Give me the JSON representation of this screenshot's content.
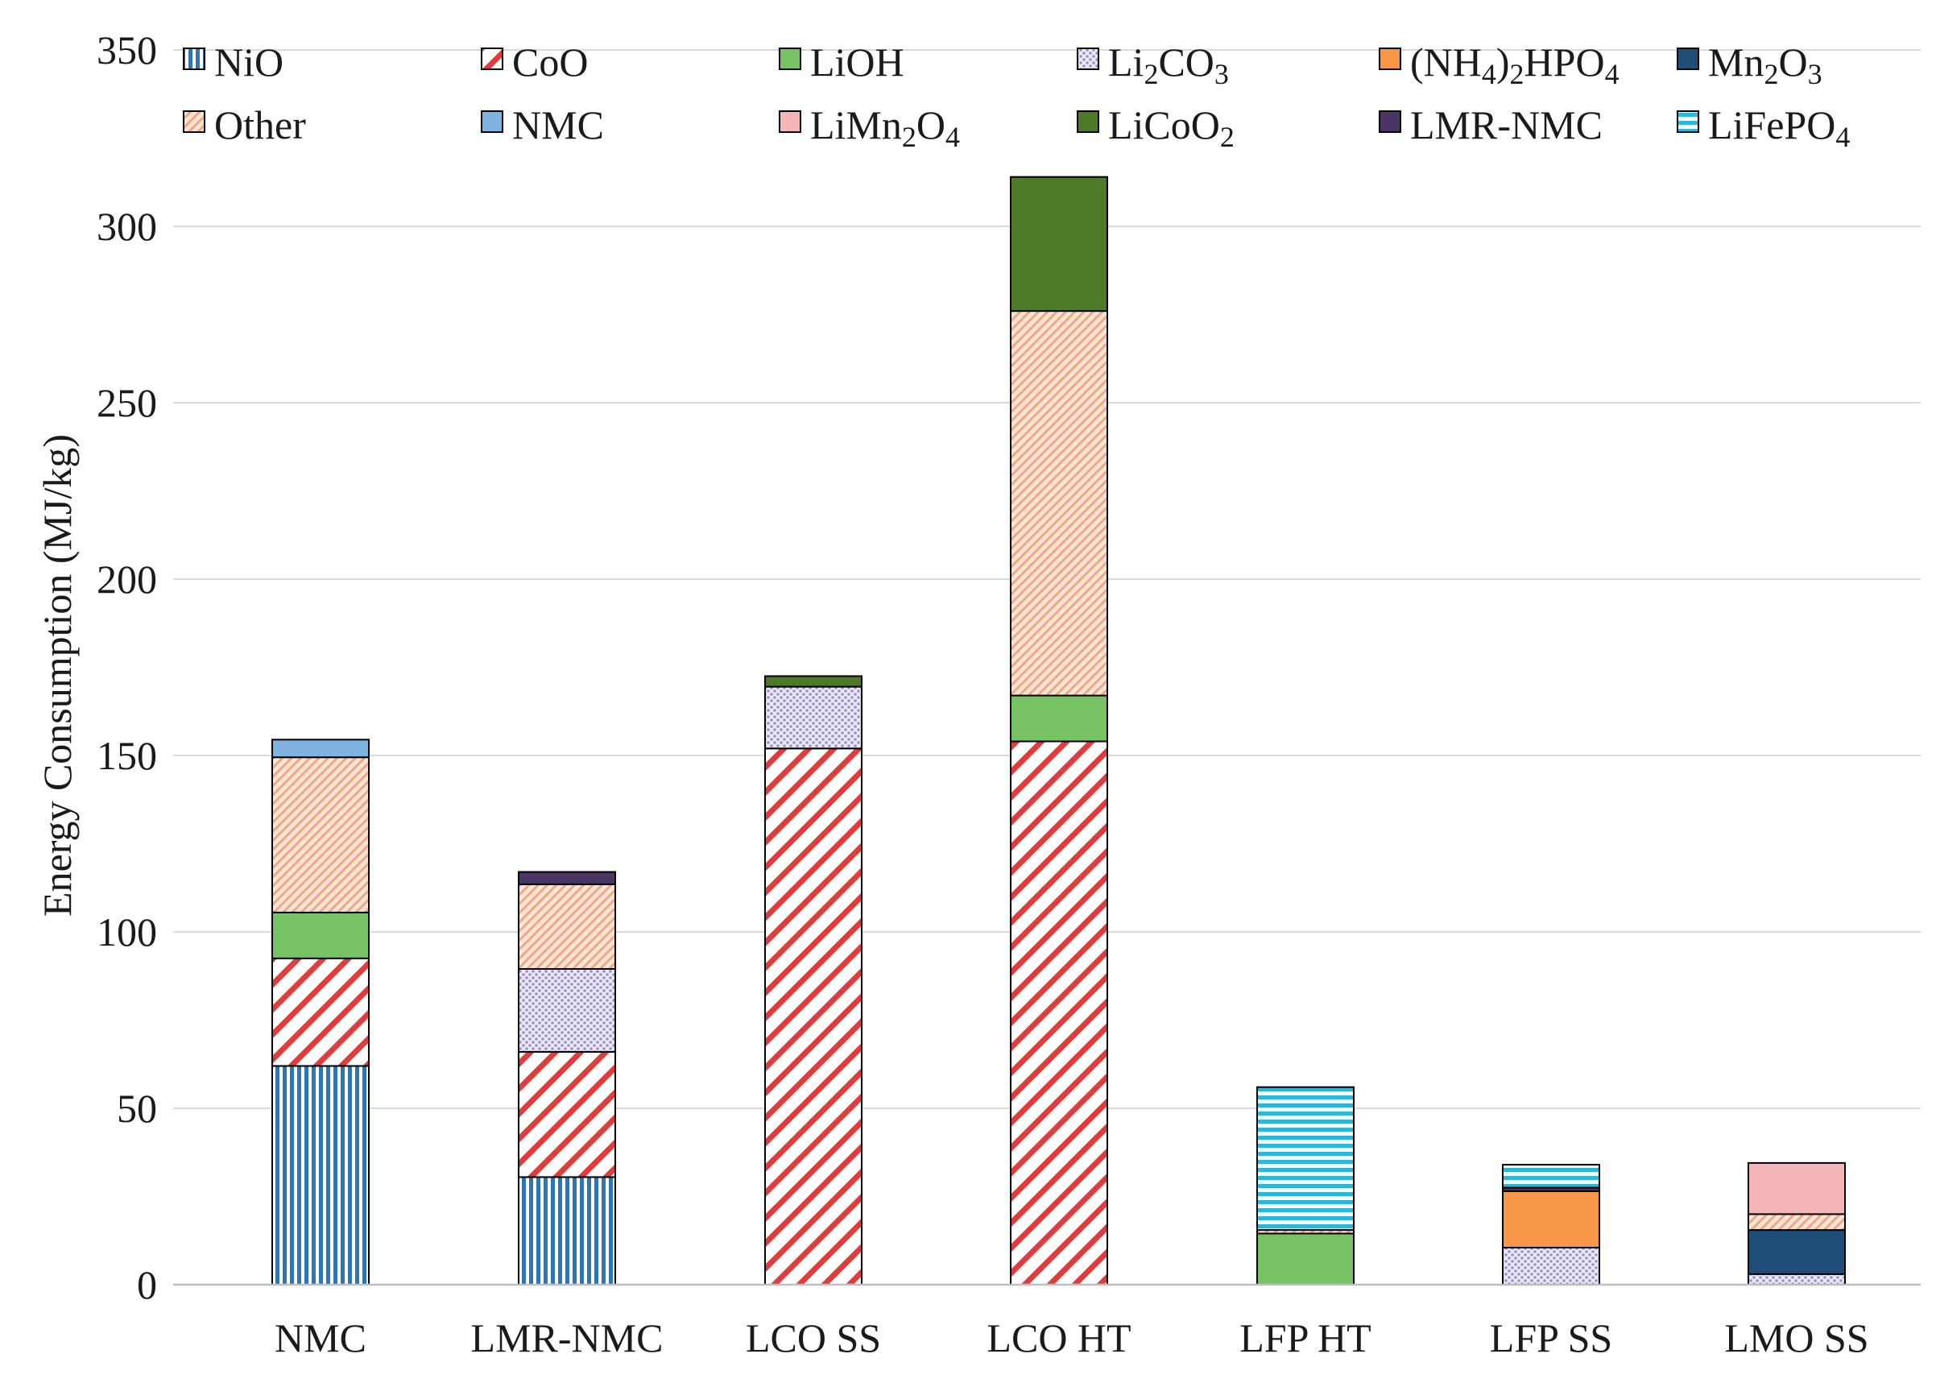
{
  "chart_data": {
    "type": "bar",
    "stacked": true,
    "title": "",
    "xlabel": "",
    "ylabel": "Energy Consumption (MJ/kg)",
    "ylim": [
      0,
      350
    ],
    "yticks": [
      0,
      50,
      100,
      150,
      200,
      250,
      300,
      350
    ],
    "grid": true,
    "legend_position": "top",
    "categories": [
      "NMC",
      "LMR-NMC",
      "LCO SS",
      "LCO HT",
      "LFP HT",
      "LFP SS",
      "LMO SS"
    ],
    "series": [
      {
        "key": "nio",
        "name": "NiO",
        "name_parts": [
          [
            "NiO",
            ""
          ]
        ],
        "color": "#2e75b6",
        "pattern": "vlines",
        "values": [
          62,
          30.5,
          0,
          0,
          0,
          0,
          0
        ]
      },
      {
        "key": "coo",
        "name": "CoO",
        "name_parts": [
          [
            "CoO",
            ""
          ]
        ],
        "color": "#e03c3c",
        "pattern": "diag",
        "values": [
          30.5,
          35.5,
          152,
          154,
          0,
          0,
          0
        ]
      },
      {
        "key": "lioh",
        "name": "LiOH",
        "name_parts": [
          [
            "LiOH",
            ""
          ]
        ],
        "color": "#77c265",
        "pattern": "solid",
        "values": [
          13,
          0,
          0,
          13,
          14.5,
          0,
          0
        ]
      },
      {
        "key": "li2co3",
        "name": "Li2CO3",
        "name_parts": [
          [
            "Li",
            ""
          ],
          [
            "2",
            "sub"
          ],
          [
            "CO",
            ""
          ],
          [
            "3",
            "sub"
          ]
        ],
        "color": "#9b8fc9",
        "pattern": "dots",
        "values": [
          0,
          23.5,
          17.5,
          0,
          0,
          10.5,
          3
        ]
      },
      {
        "key": "nh4",
        "name": "(NH4)2HPO4",
        "name_parts": [
          [
            "(NH",
            ""
          ],
          [
            "4",
            "sub"
          ],
          [
            ")",
            ""
          ],
          [
            "2",
            "sub"
          ],
          [
            "HPO",
            ""
          ],
          [
            "4",
            "sub"
          ]
        ],
        "color": "#f79646",
        "pattern": "solid",
        "values": [
          0,
          0,
          0,
          0,
          0,
          16,
          0
        ]
      },
      {
        "key": "mn2o3",
        "name": "Mn2O3",
        "name_parts": [
          [
            "Mn",
            ""
          ],
          [
            "2",
            "sub"
          ],
          [
            "O",
            ""
          ],
          [
            "3",
            "sub"
          ]
        ],
        "color": "#1f4e79",
        "pattern": "solid",
        "values": [
          0,
          0,
          0,
          0,
          0,
          0,
          12.5
        ]
      },
      {
        "key": "other",
        "name": "Other",
        "name_parts": [
          [
            "Other",
            ""
          ]
        ],
        "color": "#f4a582",
        "pattern": "fine",
        "values": [
          44,
          24,
          0,
          109,
          1,
          0,
          4.5
        ]
      },
      {
        "key": "nmc",
        "name": "NMC",
        "name_parts": [
          [
            "NMC",
            ""
          ]
        ],
        "color": "#7fb3e0",
        "pattern": "solid",
        "values": [
          5,
          0,
          0,
          0,
          0,
          0,
          0
        ]
      },
      {
        "key": "limn2o4",
        "name": "LiMn2O4",
        "name_parts": [
          [
            "LiMn",
            ""
          ],
          [
            "2",
            "sub"
          ],
          [
            "O",
            ""
          ],
          [
            "4",
            "sub"
          ]
        ],
        "color": "#f4b6b6",
        "pattern": "solid",
        "values": [
          0,
          0,
          0,
          0,
          0,
          0,
          14.5
        ]
      },
      {
        "key": "licoo2",
        "name": "LiCoO2",
        "name_parts": [
          [
            "LiCoO",
            ""
          ],
          [
            "2",
            "sub"
          ]
        ],
        "color": "#4e7a2a",
        "pattern": "solid",
        "values": [
          0,
          0,
          3,
          38,
          0,
          0,
          0
        ]
      },
      {
        "key": "lmrnmc",
        "name": "LMR-NMC",
        "name_parts": [
          [
            "LMR-NMC",
            ""
          ]
        ],
        "color": "#4b3565",
        "pattern": "solid",
        "values": [
          0,
          3.5,
          0,
          0,
          0,
          1,
          0
        ]
      },
      {
        "key": "lifepo4",
        "name": "LiFePO4",
        "name_parts": [
          [
            "LiFePO",
            ""
          ],
          [
            "4",
            "sub"
          ]
        ],
        "color": "#2bb8d8",
        "pattern": "hlines",
        "values": [
          0,
          0,
          0,
          0,
          40.5,
          6.5,
          0
        ]
      }
    ]
  }
}
